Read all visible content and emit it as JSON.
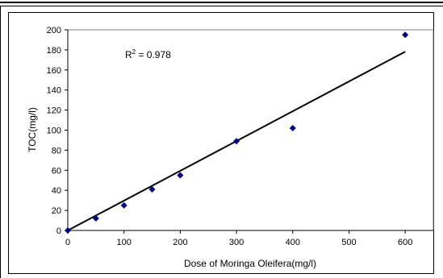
{
  "chart_data": {
    "type": "scatter",
    "title": "",
    "xlabel": "Dose of Moringa Oleifera(mg/l)",
    "ylabel": "TOC(mg/l)",
    "xlim": [
      0,
      650
    ],
    "ylim": [
      0,
      200
    ],
    "xticks": [
      0,
      100,
      200,
      300,
      400,
      500,
      600
    ],
    "yticks": [
      0,
      20,
      40,
      60,
      80,
      100,
      120,
      140,
      160,
      180,
      200
    ],
    "points": [
      {
        "x": 0,
        "y": 0
      },
      {
        "x": 50,
        "y": 12
      },
      {
        "x": 100,
        "y": 25
      },
      {
        "x": 150,
        "y": 41
      },
      {
        "x": 200,
        "y": 55
      },
      {
        "x": 300,
        "y": 89
      },
      {
        "x": 400,
        "y": 102
      },
      {
        "x": 600,
        "y": 195
      }
    ],
    "trendline": {
      "type": "linear",
      "slope": 0.297,
      "intercept": 0
    },
    "annotation": {
      "r2_prefix": "R",
      "r2_sup": "2",
      "r2_value": " = 0.978"
    },
    "marker_color": "#000080",
    "line_color": "#000000",
    "grid": false,
    "legend": false
  }
}
